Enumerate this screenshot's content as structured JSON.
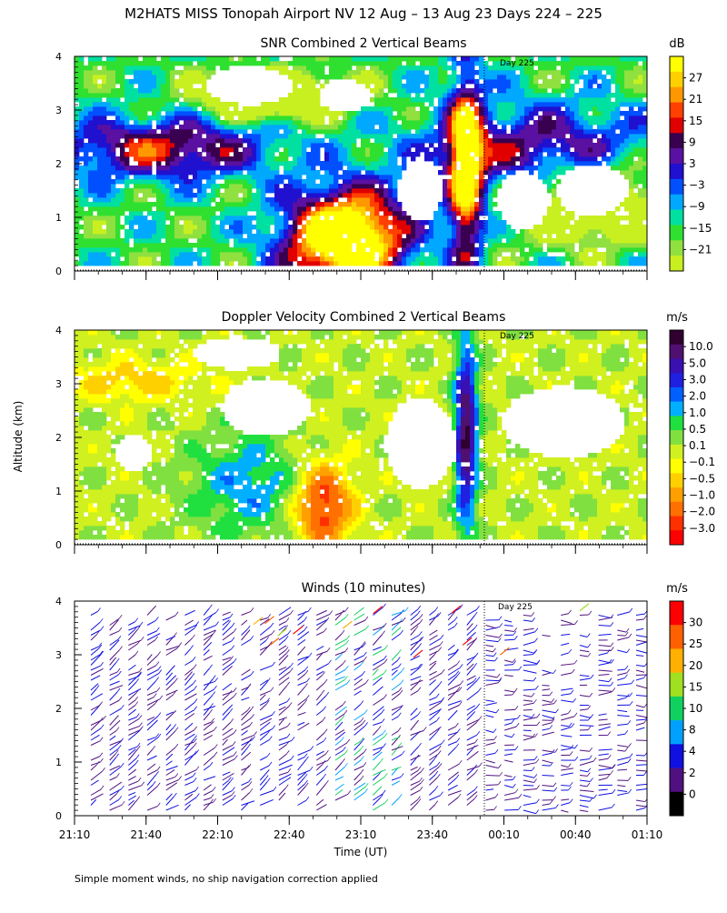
{
  "title": "M2HATS MISS Tonopah Airport NV  12 Aug – 13 Aug 23 Days 224 – 225",
  "shared_ylabel": "Altitude (km)",
  "footer": "Simple moment winds, no ship navigation correction applied",
  "day_marker_label": "Day 225",
  "chart_data": [
    {
      "type": "heatmap",
      "title": "SNR Combined 2 Vertical Beams",
      "x_ticks": [
        "21:10",
        "21:40",
        "22:10",
        "22:40",
        "23:10",
        "23:40",
        "00:10",
        "00:40",
        "01:10"
      ],
      "y_ticks": [
        "0",
        "1",
        "2",
        "3",
        "4"
      ],
      "ylim": [
        0,
        4
      ],
      "colorbar": {
        "unit": "dB",
        "labels": [
          "27",
          "21",
          "15",
          "9",
          "3",
          "−3",
          "−9",
          "−15",
          "−21"
        ],
        "colors": [
          "#ffff00",
          "#ffd000",
          "#ff9800",
          "#ff4000",
          "#e00000",
          "#3a0050",
          "#5a10a0",
          "#2010d0",
          "#0050ff",
          "#00a8ff",
          "#00e0a0",
          "#30e030",
          "#90e040",
          "#c8f020"
        ]
      }
    },
    {
      "type": "heatmap",
      "title": "Doppler Velocity Combined 2 Vertical Beams",
      "x_ticks": [
        "21:10",
        "21:40",
        "22:10",
        "22:40",
        "23:10",
        "23:40",
        "00:10",
        "00:40",
        "01:10"
      ],
      "y_ticks": [
        "0",
        "1",
        "2",
        "3",
        "4"
      ],
      "ylim": [
        0,
        4
      ],
      "colorbar": {
        "unit": "m/s",
        "labels": [
          "10.0",
          "5.0",
          "3.0",
          "2.0",
          "1.0",
          "0.5",
          "0.1",
          "−0.1",
          "−0.5",
          "−1.0",
          "−2.0",
          "−3.0"
        ],
        "colors": [
          "#300030",
          "#501070",
          "#3a10b0",
          "#2020e0",
          "#0060ff",
          "#00b0ff",
          "#20e040",
          "#80e040",
          "#d0f020",
          "#ffff00",
          "#ffd000",
          "#ffa000",
          "#ff7000",
          "#ff3000",
          "#ff0000"
        ]
      }
    },
    {
      "type": "scatter",
      "title": "Winds (10 minutes)",
      "x_ticks": [
        "21:10",
        "21:40",
        "22:10",
        "22:40",
        "23:10",
        "23:40",
        "00:10",
        "00:40",
        "01:10"
      ],
      "xlabel": "Time (UT)",
      "y_ticks": [
        "0",
        "1",
        "2",
        "3",
        "4"
      ],
      "ylim": [
        0,
        4
      ],
      "colorbar": {
        "unit": "m/s",
        "labels": [
          "30",
          "25",
          "20",
          "15",
          "10",
          "8",
          "4",
          "2",
          "0"
        ],
        "colors": [
          "#ff0000",
          "#ff6000",
          "#ffb000",
          "#a0e020",
          "#10d060",
          "#00a0ff",
          "#1010e0",
          "#501080",
          "#000000"
        ]
      }
    }
  ]
}
